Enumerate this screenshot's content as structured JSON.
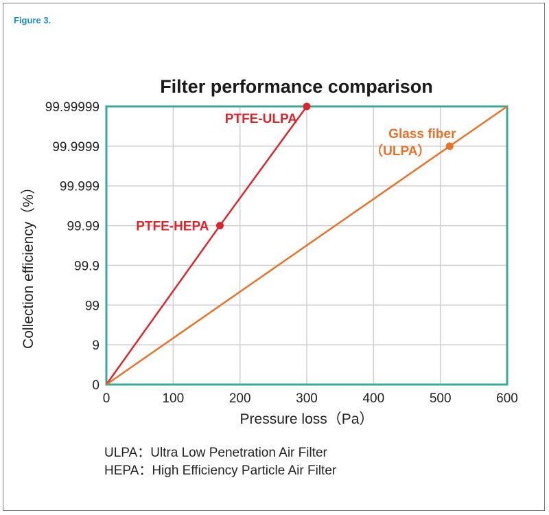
{
  "figure_label": "Figure 3.",
  "notes": [
    "ULPA：Ultra Low Penetration Air Filter",
    "HEPA：High Efficiency Particle Air Filter"
  ],
  "colors": {
    "ptfe": "#d9272e",
    "glass": "#e8722a",
    "frame": "#3aa99a",
    "grid": "#cfcfcf"
  },
  "chart_data": {
    "type": "line",
    "title": "Filter performance comparison",
    "xlabel": "Pressure loss（Pa）",
    "ylabel": "Collection efficiency（%）",
    "xlim": [
      0,
      600
    ],
    "xticks": [
      "0",
      "100",
      "200",
      "300",
      "400",
      "500",
      "600"
    ],
    "yticks": [
      "0",
      "9",
      "99",
      "99.9",
      "99.99",
      "99.999",
      "99.9999",
      "99.99999"
    ],
    "ylim_index": [
      0,
      7
    ],
    "grid": true,
    "series": [
      {
        "name": "PTFE",
        "color": "#d9272e",
        "points": [
          [
            0,
            0
          ],
          [
            170,
            4
          ],
          [
            300,
            7
          ]
        ],
        "labels": [
          {
            "text": "PTFE-HEPA",
            "at": 1
          },
          {
            "text": "PTFE-ULPA",
            "at": 2
          }
        ]
      },
      {
        "name": "Glass fiber",
        "color": "#e8722a",
        "points": [
          [
            0,
            0
          ],
          [
            514,
            6
          ],
          [
            600,
            7
          ]
        ],
        "markers": [
          1
        ],
        "labels": [
          {
            "text": "Glass fiber",
            "at": 1
          },
          {
            "text": "（ULPA）",
            "at": 1
          }
        ]
      }
    ]
  }
}
